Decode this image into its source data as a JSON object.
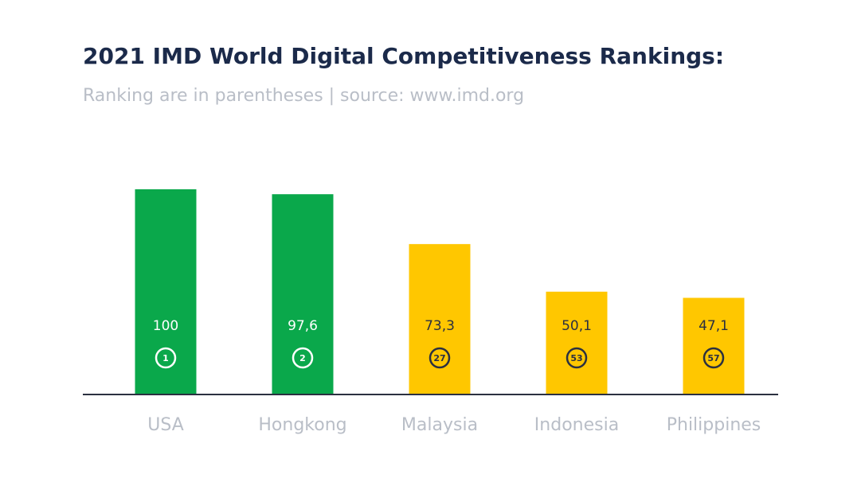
{
  "chart_data": {
    "type": "bar",
    "title": "2021 IMD World Digital Competitiveness Rankings:",
    "subtitle": "Ranking are in parentheses | source: www.imd.org",
    "categories": [
      "USA",
      "Hongkong",
      "Malaysia",
      "Indonesia",
      "Philippines"
    ],
    "values": [
      100,
      97.6,
      73.3,
      50.1,
      47.1
    ],
    "value_labels": [
      "100",
      "97,6",
      "73,3",
      "50,1",
      "47,1"
    ],
    "rankings": [
      1,
      2,
      27,
      53,
      57
    ],
    "colors": [
      "#0aa84b",
      "#0aa84b",
      "#ffc700",
      "#ffc700",
      "#ffc700"
    ],
    "ylim": [
      0,
      100
    ],
    "grid": false
  }
}
